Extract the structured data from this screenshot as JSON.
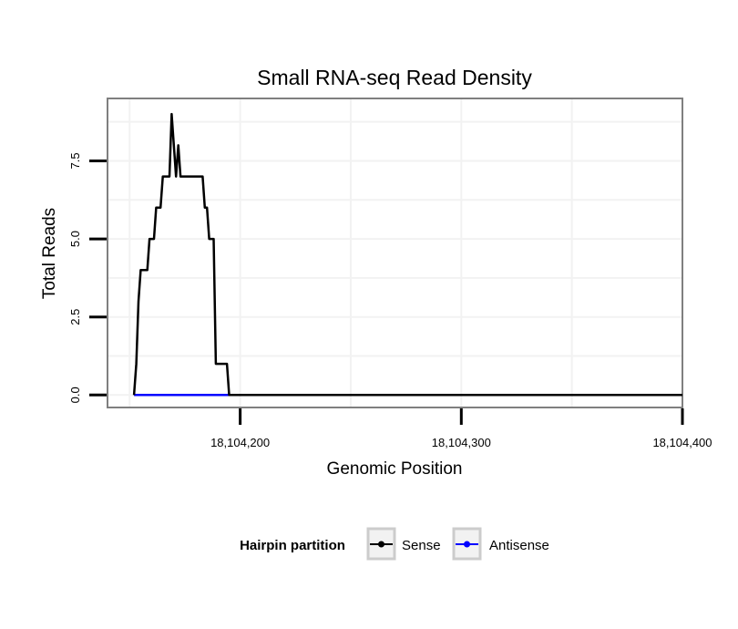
{
  "chart_data": {
    "type": "line",
    "title": "Small RNA-seq Read Density",
    "xlabel": "Genomic Position",
    "ylabel": "Total Reads",
    "xlim": [
      18104140,
      18104400
    ],
    "ylim": [
      -0.4,
      9.5
    ],
    "x_ticks": [
      18104200,
      18104300,
      18104400
    ],
    "x_tick_labels": [
      "18,104,200",
      "18,104,300",
      "18,104,400"
    ],
    "y_ticks": [
      0,
      2.5,
      5,
      7.5
    ],
    "y_tick_labels": [
      "0.0",
      "2.5",
      "5.0",
      "7.5"
    ],
    "grid": true,
    "legend": {
      "title": "Hairpin partition",
      "position": "bottom",
      "entries": [
        "Sense",
        "Antisense"
      ]
    },
    "series": [
      {
        "name": "Sense",
        "color": "#000000",
        "x": [
          18104152,
          18104153,
          18104154,
          18104155,
          18104158,
          18104159,
          18104161,
          18104162,
          18104164,
          18104165,
          18104168,
          18104169,
          18104171,
          18104172,
          18104173,
          18104174,
          18104175,
          18104176,
          18104177,
          18104183,
          18104184,
          18104185,
          18104186,
          18104188,
          18104189,
          18104194,
          18104195,
          18104196,
          18104400
        ],
        "y": [
          0,
          1,
          3,
          4,
          4,
          5,
          5,
          6,
          6,
          7,
          7,
          9,
          7,
          8,
          7,
          7,
          7,
          7,
          7,
          7,
          6,
          6,
          5,
          5,
          1,
          1,
          0,
          0,
          0
        ]
      },
      {
        "name": "Antisense",
        "color": "#0000ff",
        "x": [
          18104152,
          18104196
        ],
        "y": [
          0,
          0
        ]
      }
    ]
  }
}
